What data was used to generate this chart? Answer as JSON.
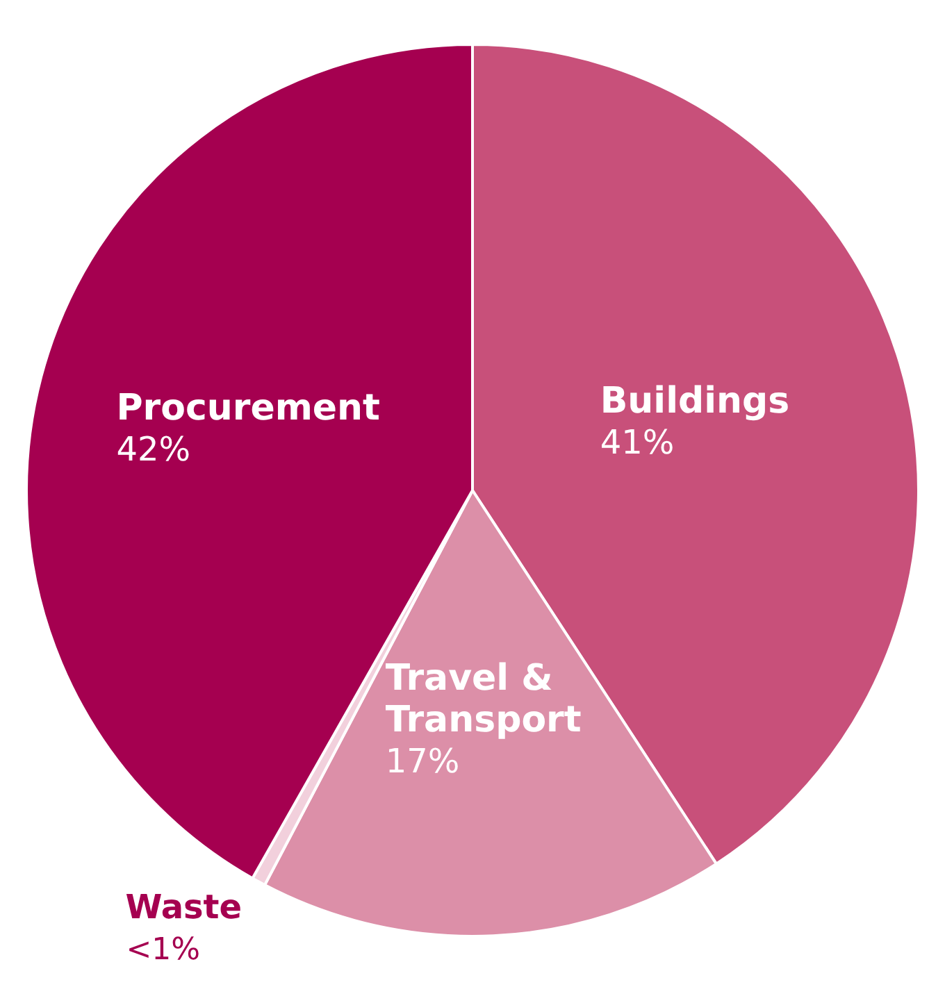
{
  "chart_data": {
    "type": "pie",
    "categories": [
      "Buildings",
      "Travel & Transport",
      "Waste",
      "Procurement"
    ],
    "values": [
      41,
      17,
      0.5,
      42
    ],
    "value_labels": [
      "41%",
      "17%",
      "<1%",
      "42%"
    ],
    "colors": [
      "#c8507a",
      "#dc8fa8",
      "#f2d0dc",
      "#a50050"
    ],
    "legend": false
  }
}
